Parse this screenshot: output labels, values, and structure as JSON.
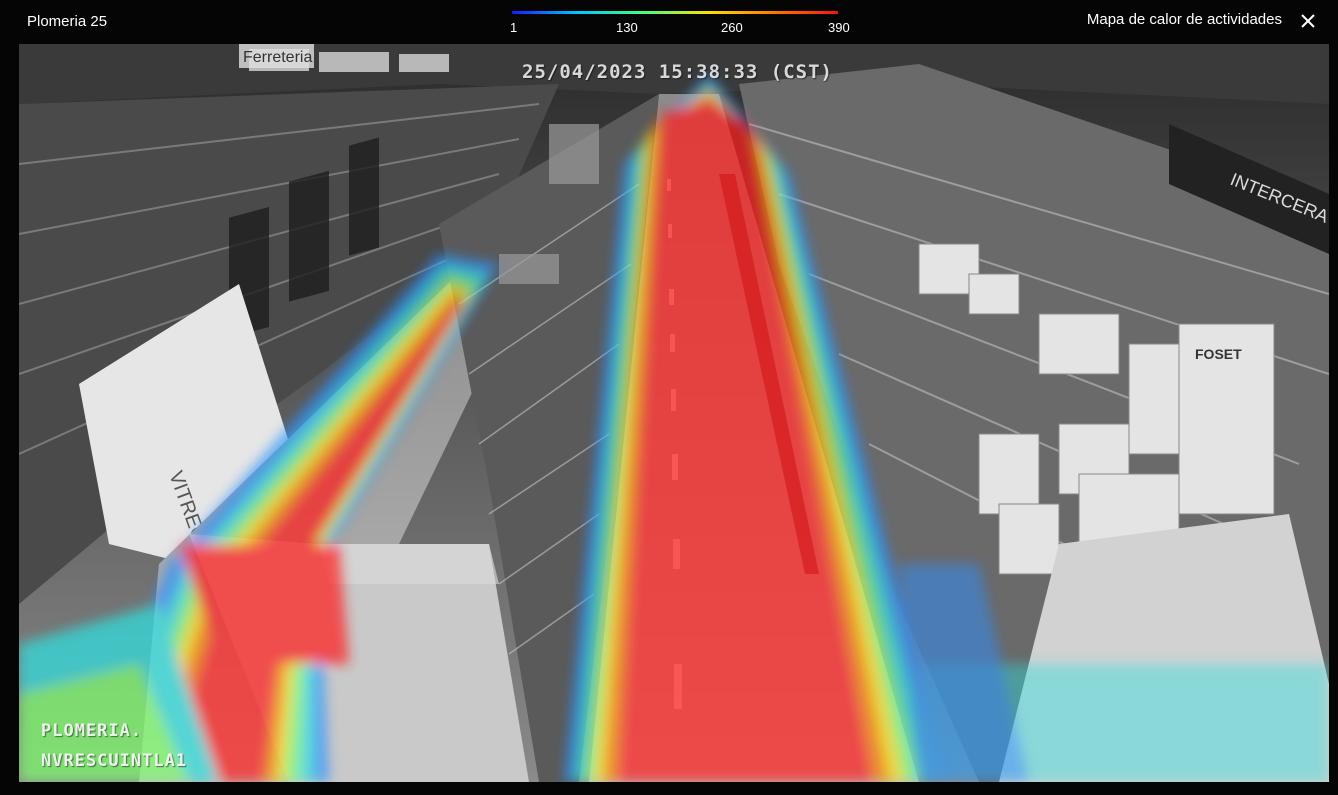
{
  "header": {
    "camera_title": "Plomeria 25",
    "heatmap_title": "Mapa de calor de actividades",
    "close_icon": "close-icon"
  },
  "legend": {
    "labels": [
      "1",
      "130",
      "260",
      "390"
    ],
    "gradient_colors": [
      "#1a1aff",
      "#00c8ff",
      "#40ff80",
      "#ffe000",
      "#ff7a00",
      "#ff1010"
    ]
  },
  "video": {
    "timestamp": "25/04/2023 15:38:33 (CST)",
    "osd_line1": "PLOMERIA.",
    "osd_line2": "NVRESCUINTLA1",
    "store_signs": [
      "Ferreteria",
      "INTERCERA",
      "VITREO",
      "FOSET"
    ]
  }
}
